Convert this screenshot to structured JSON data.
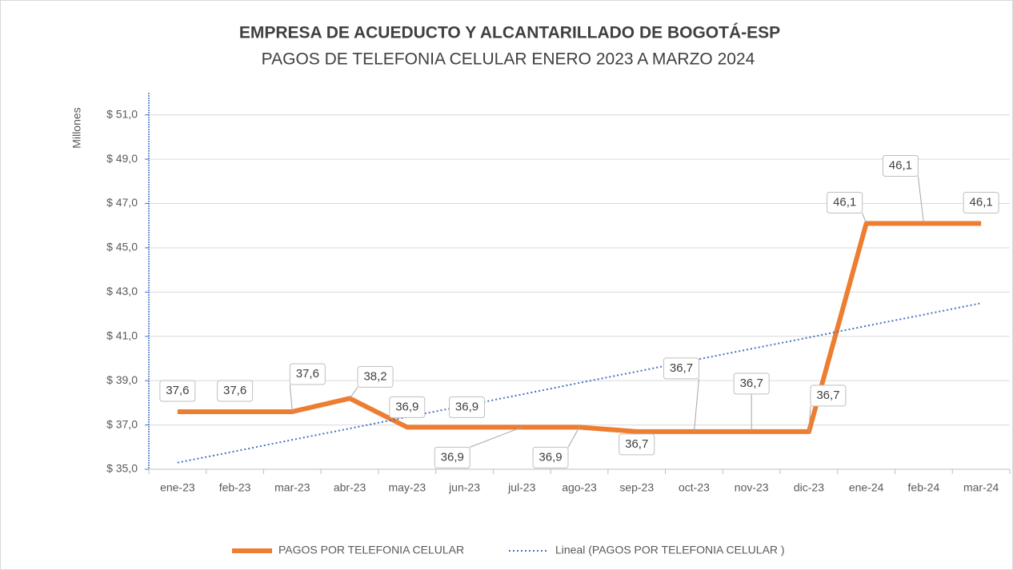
{
  "chart_data": {
    "type": "line",
    "title": "EMPRESA DE ACUEDUCTO Y ALCANTARILLADO DE BOGOTÁ-ESP",
    "subtitle": "PAGOS DE TELEFONIA CELULAR ENERO 2023 A MARZO 2024",
    "y_label": "Millones",
    "categories": [
      "ene-23",
      "feb-23",
      "mar-23",
      "abr-23",
      "may-23",
      "jun-23",
      "jul-23",
      "ago-23",
      "sep-23",
      "oct-23",
      "nov-23",
      "dic-23",
      "ene-24",
      "feb-24",
      "mar-24"
    ],
    "series": [
      {
        "name": "PAGOS POR TELEFONIA CELULAR",
        "color": "#ed7d31",
        "values": [
          37.6,
          37.6,
          37.6,
          38.2,
          36.9,
          36.9,
          36.9,
          36.9,
          36.7,
          36.7,
          36.7,
          36.7,
          46.1,
          46.1,
          46.1
        ],
        "value_labels": [
          "37,6",
          "37,6",
          "37,6",
          "38,2",
          "36,9",
          "36,9",
          "36,9",
          "36,9",
          "36,7",
          "36,7",
          "36,7",
          "36,7",
          "46,1",
          "46,1",
          "46,1"
        ]
      },
      {
        "name": "Lineal (PAGOS POR TELEFONIA CELULAR )",
        "color": "#4472c4",
        "dashed": true,
        "values": [
          35.3,
          35.81,
          36.33,
          36.84,
          37.36,
          37.87,
          38.38,
          38.9,
          39.41,
          39.93,
          40.44,
          40.95,
          41.47,
          41.98,
          42.5
        ]
      }
    ],
    "ylim": [
      35,
      52
    ],
    "yticks": [
      {
        "value": 35,
        "label": "$ 35,0"
      },
      {
        "value": 37,
        "label": "$ 37,0"
      },
      {
        "value": 39,
        "label": "$ 39,0"
      },
      {
        "value": 41,
        "label": "$ 41,0"
      },
      {
        "value": 43,
        "label": "$ 43,0"
      },
      {
        "value": 45,
        "label": "$ 45,0"
      },
      {
        "value": 47,
        "label": "$ 47,0"
      },
      {
        "value": 49,
        "label": "$ 49,0"
      },
      {
        "value": 51,
        "label": "$ 51,0"
      }
    ],
    "grid": true,
    "legend": "bottom"
  }
}
